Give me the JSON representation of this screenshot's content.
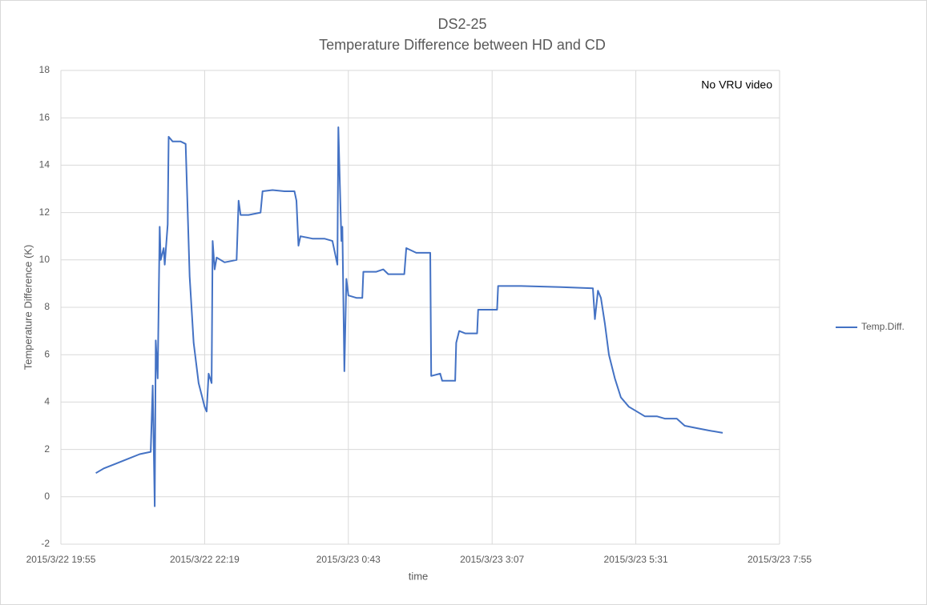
{
  "chart_data": {
    "type": "line",
    "title": "DS2-25",
    "subtitle": "Temperature Difference between HD and CD",
    "x_label": "time",
    "y_label": "Temperature Difference (K)",
    "annotation": "No VRU video",
    "legend": "right",
    "grid": true,
    "xlim": [
      "2015/3/22 19:55",
      "2015/3/23 7:55"
    ],
    "xticks": [
      "2015/3/22 19:55",
      "2015/3/22 22:19",
      "2015/3/23 0:43",
      "2015/3/23 3:07",
      "2015/3/23 5:31",
      "2015/3/23 7:55"
    ],
    "ylim": [
      -2,
      18
    ],
    "yticks": [
      -2,
      0,
      2,
      4,
      6,
      8,
      10,
      12,
      14,
      16,
      18
    ],
    "x": [
      "2015/3/22 20:30",
      "2015/3/22 20:38",
      "2015/3/22 20:50",
      "2015/3/22 21:02",
      "2015/3/22 21:14",
      "2015/3/22 21:25",
      "2015/3/22 21:27",
      "2015/3/22 21:29",
      "2015/3/22 21:30",
      "2015/3/22 21:32",
      "2015/3/22 21:34",
      "2015/3/22 21:35",
      "2015/3/22 21:38",
      "2015/3/22 21:39",
      "2015/3/22 21:42",
      "2015/3/22 21:43",
      "2015/3/22 21:47",
      "2015/3/22 21:55",
      "2015/3/22 22:00",
      "2015/3/22 22:04",
      "2015/3/22 22:08",
      "2015/3/22 22:13",
      "2015/3/22 22:19",
      "2015/3/22 22:21",
      "2015/3/22 22:23",
      "2015/3/22 22:26",
      "2015/3/22 22:27",
      "2015/3/22 22:29",
      "2015/3/22 22:31",
      "2015/3/22 22:39",
      "2015/3/22 22:51",
      "2015/3/22 22:53",
      "2015/3/22 22:55",
      "2015/3/22 23:03",
      "2015/3/22 23:15",
      "2015/3/22 23:17",
      "2015/3/22 23:27",
      "2015/3/22 23:39",
      "2015/3/22 23:49",
      "2015/3/22 23:51",
      "2015/3/22 23:53",
      "2015/3/22 23:55",
      "2015/3/23 0:07",
      "2015/3/23 0:19",
      "2015/3/23 0:27",
      "2015/3/23 0:32",
      "2015/3/23 0:33",
      "2015/3/23 0:36",
      "2015/3/23 0:37",
      "2015/3/23 0:39",
      "2015/3/23 0:41",
      "2015/3/23 0:43",
      "2015/3/23 0:51",
      "2015/3/23 0:57",
      "2015/3/23 0:58",
      "2015/3/23 1:11",
      "2015/3/23 1:18",
      "2015/3/23 1:23",
      "2015/3/23 1:35",
      "2015/3/23 1:39",
      "2015/3/23 1:41",
      "2015/3/23 1:51",
      "2015/3/23 2:05",
      "2015/3/23 2:06",
      "2015/3/23 2:15",
      "2015/3/23 2:17",
      "2015/3/23 2:30",
      "2015/3/23 2:31",
      "2015/3/23 2:34",
      "2015/3/23 2:40",
      "2015/3/23 2:52",
      "2015/3/23 2:53",
      "2015/3/23 3:08",
      "2015/3/23 3:12",
      "2015/3/23 3:13",
      "2015/3/23 3:36",
      "2015/3/23 4:16",
      "2015/3/23 4:48",
      "2015/3/23 4:50",
      "2015/3/23 4:53",
      "2015/3/23 4:56",
      "2015/3/23 5:00",
      "2015/3/23 5:04",
      "2015/3/23 5:10",
      "2015/3/23 5:16",
      "2015/3/23 5:24",
      "2015/3/23 5:32",
      "2015/3/23 5:40",
      "2015/3/23 5:52",
      "2015/3/23 6:00",
      "2015/3/23 6:12",
      "2015/3/23 6:20",
      "2015/3/23 6:32",
      "2015/3/23 6:44",
      "2015/3/23 6:58"
    ],
    "series": [
      {
        "name": "Temp.Diff.",
        "color": "#4472c4",
        "values": [
          1.0,
          1.2,
          1.4,
          1.6,
          1.8,
          1.9,
          4.7,
          -0.4,
          6.6,
          5.0,
          11.4,
          10.0,
          10.5,
          9.8,
          11.5,
          15.2,
          15.0,
          15.0,
          14.9,
          9.3,
          6.5,
          4.8,
          3.8,
          3.6,
          5.2,
          4.8,
          10.8,
          9.6,
          10.1,
          9.9,
          10.0,
          12.5,
          11.9,
          11.9,
          12.0,
          12.9,
          12.95,
          12.9,
          12.9,
          12.5,
          10.6,
          11.0,
          10.9,
          10.9,
          10.8,
          9.8,
          15.6,
          10.8,
          11.4,
          5.3,
          9.2,
          8.5,
          8.4,
          8.4,
          9.5,
          9.5,
          9.6,
          9.4,
          9.4,
          9.4,
          10.5,
          10.3,
          10.3,
          5.1,
          5.2,
          4.9,
          4.9,
          6.5,
          7.0,
          6.9,
          6.9,
          7.9,
          7.9,
          7.9,
          8.9,
          8.9,
          8.85,
          8.8,
          7.5,
          8.7,
          8.4,
          7.3,
          6.0,
          5.0,
          4.2,
          3.8,
          3.6,
          3.4,
          3.4,
          3.3,
          3.3,
          3.0,
          2.9,
          2.8,
          2.7
        ]
      }
    ]
  }
}
